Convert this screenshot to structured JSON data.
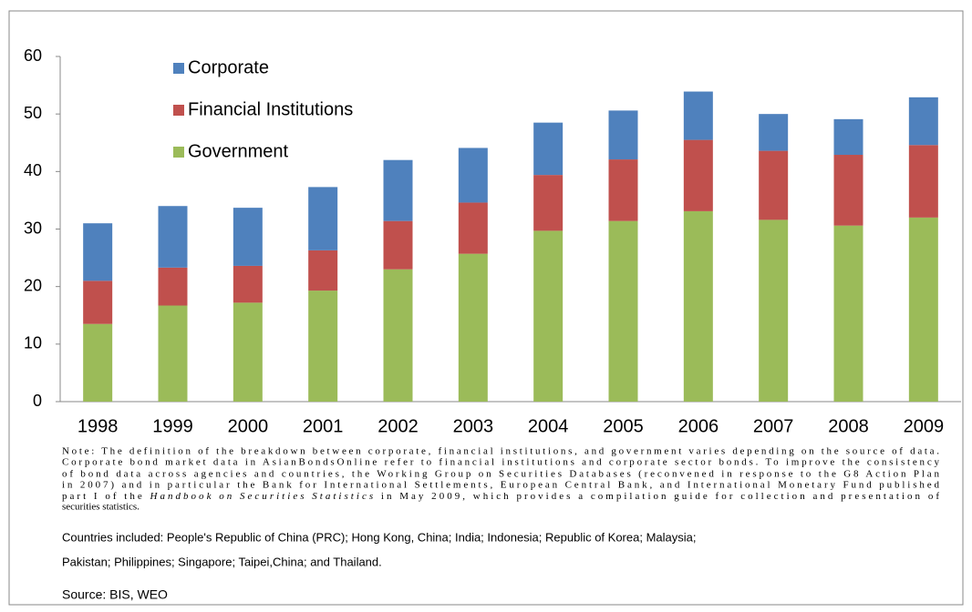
{
  "chart_data": {
    "type": "stacked_bar",
    "categories": [
      "1998",
      "1999",
      "2000",
      "2001",
      "2002",
      "2003",
      "2004",
      "2005",
      "2006",
      "2007",
      "2008",
      "2009"
    ],
    "series": [
      {
        "name": "Government",
        "color": "#9bbb59",
        "values": [
          13.5,
          16.7,
          17.2,
          19.3,
          23,
          25.7,
          29.7,
          31.4,
          33.1,
          31.6,
          30.6,
          32
        ]
      },
      {
        "name": "Financial Institutions",
        "color": "#c0504d",
        "values": [
          7.5,
          6.6,
          6.4,
          7,
          8.4,
          8.9,
          9.7,
          10.7,
          12.4,
          12,
          12.3,
          12.6
        ]
      },
      {
        "name": "Corporate",
        "color": "#4f81bd",
        "values": [
          10,
          10.7,
          10.1,
          11,
          10.6,
          9.5,
          9.1,
          8.5,
          8.4,
          6.4,
          6.2,
          8.3
        ]
      }
    ],
    "ylim": [
      0,
      60
    ],
    "yticks": [
      0,
      10,
      20,
      30,
      40,
      50,
      60
    ],
    "grid": false,
    "legend": "top-left"
  },
  "notes": {
    "note_lines": [
      "Note: The definition of the breakdown between corporate, financial institutions, and government varies depending on the source of data.",
      "Corporate bond market data in AsianBondsOnline refer to financial institutions and corporate sector bonds. To improve the consistency",
      "of bond data across agencies and countries, the Working Group on Securities Databases (reconvened in response to the G8 Action Plan",
      "in 2007) and in particular the Bank for International Settlements, European Central Bank, and International Monetary Fund published"
    ],
    "note_line5": [
      "part I of the ",
      "Handbook on Securities Statistics",
      " in May 2009, which provides a compilation guide for collection and presentation of"
    ],
    "note_last": "securities statistics.",
    "countries": [
      "Countries included: People's Republic of China (PRC); Hong Kong, China; India; Indonesia; Republic of Korea; Malaysia;",
      "Pakistan; Philippines; Singapore; Taipei,China; and Thailand."
    ],
    "source": "Source: BIS, WEO"
  }
}
